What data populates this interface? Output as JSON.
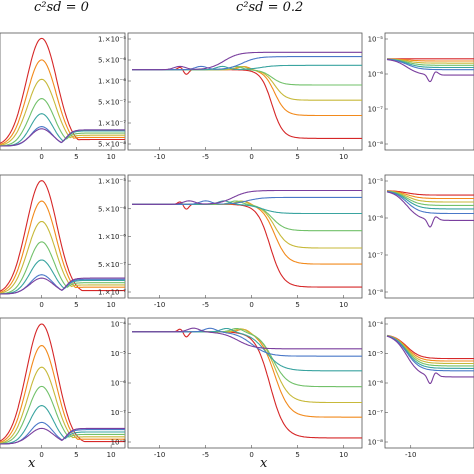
{
  "headers": {
    "left": "c²sd = 0",
    "center": "c²sd = 0.2"
  },
  "xlabel": "x",
  "series_colors": [
    "#d62728",
    "#f28a1c",
    "#c7b93a",
    "#72c16a",
    "#3aa4a0",
    "#4a78c8",
    "#7a3f9e"
  ],
  "chart_data": [
    {
      "type": "line",
      "panel": "left-row1",
      "xticks": [
        "0",
        "5",
        "10"
      ],
      "xlim": [
        -6,
        12
      ],
      "series": [
        {
          "peak": 1.0,
          "sigma": 2.2,
          "tail": 0.06
        },
        {
          "peak": 0.8,
          "sigma": 2.1,
          "tail": 0.08
        },
        {
          "peak": 0.62,
          "sigma": 2.0,
          "tail": 0.1
        },
        {
          "peak": 0.44,
          "sigma": 1.8,
          "tail": 0.12
        },
        {
          "peak": 0.3,
          "sigma": 1.6,
          "tail": 0.14
        },
        {
          "peak": 0.18,
          "sigma": 1.5,
          "tail": 0.15
        },
        {
          "peak": 0.16,
          "sigma": 1.6,
          "tail": 0.15
        }
      ]
    },
    {
      "type": "line",
      "panel": "left-row2",
      "xticks": [
        "0",
        "5",
        "10"
      ],
      "xlim": [
        -6,
        12
      ],
      "series": [
        {
          "peak": 1.0,
          "sigma": 2.2,
          "tail": 0.03
        },
        {
          "peak": 0.82,
          "sigma": 2.1,
          "tail": 0.06
        },
        {
          "peak": 0.64,
          "sigma": 2.0,
          "tail": 0.08
        },
        {
          "peak": 0.46,
          "sigma": 1.8,
          "tail": 0.1
        },
        {
          "peak": 0.3,
          "sigma": 1.7,
          "tail": 0.12
        },
        {
          "peak": 0.17,
          "sigma": 1.6,
          "tail": 0.13
        },
        {
          "peak": 0.14,
          "sigma": 1.7,
          "tail": 0.14
        }
      ]
    },
    {
      "type": "line",
      "panel": "left-row3",
      "xticks": [
        "0",
        "5",
        "10"
      ],
      "xlim": [
        -6,
        12
      ],
      "series": [
        {
          "peak": 1.0,
          "sigma": 2.2,
          "tail": 0.02
        },
        {
          "peak": 0.82,
          "sigma": 2.1,
          "tail": 0.04
        },
        {
          "peak": 0.64,
          "sigma": 2.0,
          "tail": 0.06
        },
        {
          "peak": 0.48,
          "sigma": 1.9,
          "tail": 0.08
        },
        {
          "peak": 0.32,
          "sigma": 1.7,
          "tail": 0.1
        },
        {
          "peak": 0.18,
          "sigma": 1.6,
          "tail": 0.12
        },
        {
          "peak": 0.13,
          "sigma": 1.7,
          "tail": 0.13
        }
      ]
    },
    {
      "type": "line",
      "panel": "center-row1",
      "yscale": "log",
      "xticks": [
        "-10",
        "-5",
        "0",
        "5",
        "10"
      ],
      "xlim": [
        -13,
        12
      ],
      "yticks": [
        "1.×10⁻⁵",
        "5.×10⁻⁶",
        "1.×10⁻⁶",
        "5.×10⁻⁷",
        "1.×10⁻⁷",
        "5.×10⁻⁸"
      ],
      "series": [
        {
          "left": 0.3,
          "right": 0.93,
          "x0": 2.2,
          "w": 0.6,
          "ring": 1
        },
        {
          "left": 0.3,
          "right": 0.72,
          "x0": 2.5,
          "w": 0.6
        },
        {
          "left": 0.3,
          "right": 0.58,
          "x0": 2.5,
          "w": 0.6
        },
        {
          "left": 0.3,
          "right": 0.44,
          "x0": 2.2,
          "w": 0.6
        },
        {
          "left": 0.3,
          "right": 0.26,
          "x0": 1.0,
          "w": 0.8
        },
        {
          "left": 0.3,
          "right": 0.18,
          "x0": -1.0,
          "w": 0.8
        },
        {
          "left": 0.3,
          "right": 0.14,
          "x0": -3.0,
          "w": 0.8
        }
      ]
    },
    {
      "type": "line",
      "panel": "center-row2",
      "yscale": "log",
      "xticks": [
        "-10",
        "-5",
        "0",
        "5",
        "10"
      ],
      "xlim": [
        -13,
        12
      ],
      "yticks": [
        "1.×10⁻⁵",
        "5.×10⁻⁶",
        "1.×10⁻⁶",
        "5.×10⁻⁷",
        "1.×10⁻⁷"
      ],
      "series": [
        {
          "left": 0.22,
          "right": 0.94,
          "x0": 2.0,
          "w": 0.7,
          "ring": 1
        },
        {
          "left": 0.22,
          "right": 0.74,
          "x0": 2.5,
          "w": 0.7
        },
        {
          "left": 0.22,
          "right": 0.6,
          "x0": 2.5,
          "w": 0.7
        },
        {
          "left": 0.22,
          "right": 0.45,
          "x0": 2.2,
          "w": 0.7
        },
        {
          "left": 0.22,
          "right": 0.3,
          "x0": 1.2,
          "w": 0.8
        },
        {
          "left": 0.22,
          "right": 0.16,
          "x0": -0.5,
          "w": 0.8
        },
        {
          "left": 0.22,
          "right": 0.1,
          "x0": -2.0,
          "w": 0.8
        }
      ]
    },
    {
      "type": "line",
      "panel": "center-row3",
      "yscale": "log",
      "xticks": [
        "-10",
        "-5",
        "0",
        "5",
        "10"
      ],
      "xlim": [
        -13,
        12
      ],
      "yticks": [
        "10⁻⁴",
        "10⁻⁵",
        "10⁻⁶",
        "10⁻⁷",
        "10⁻⁸"
      ],
      "series": [
        {
          "left": 0.08,
          "right": 0.95,
          "x0": 2.0,
          "w": 0.8,
          "ring": 1
        },
        {
          "left": 0.08,
          "right": 0.78,
          "x0": 2.5,
          "w": 0.8
        },
        {
          "left": 0.08,
          "right": 0.66,
          "x0": 2.5,
          "w": 0.8
        },
        {
          "left": 0.08,
          "right": 0.53,
          "x0": 2.3,
          "w": 0.8
        },
        {
          "left": 0.08,
          "right": 0.4,
          "x0": 1.5,
          "w": 0.9
        },
        {
          "left": 0.08,
          "right": 0.28,
          "x0": 0.0,
          "w": 0.9
        },
        {
          "left": 0.08,
          "right": 0.22,
          "x0": -1.5,
          "w": 0.9
        }
      ]
    },
    {
      "type": "line",
      "panel": "right-row1",
      "yscale": "log",
      "xticks": [],
      "yticks": [
        "10⁻⁵",
        "10⁻⁶",
        "10⁻⁷",
        "10⁻⁸"
      ],
      "series": [
        {
          "left": 0.2,
          "right": 0.2
        },
        {
          "left": 0.2,
          "right": 0.22
        },
        {
          "left": 0.2,
          "right": 0.24
        },
        {
          "left": 0.2,
          "right": 0.26
        },
        {
          "left": 0.2,
          "right": 0.28
        },
        {
          "left": 0.2,
          "right": 0.3
        },
        {
          "left": 0.2,
          "right": 0.35,
          "dip": 1
        }
      ]
    },
    {
      "type": "line",
      "panel": "right-row2",
      "yscale": "log",
      "xticks": [],
      "yticks": [
        "10⁻⁵",
        "10⁻⁶",
        "10⁻⁷",
        "10⁻⁸"
      ],
      "series": [
        {
          "left": 0.1,
          "right": 0.14
        },
        {
          "left": 0.1,
          "right": 0.17
        },
        {
          "left": 0.1,
          "right": 0.2
        },
        {
          "left": 0.1,
          "right": 0.23
        },
        {
          "left": 0.1,
          "right": 0.26
        },
        {
          "left": 0.1,
          "right": 0.3
        },
        {
          "left": 0.1,
          "right": 0.36,
          "dip": 1
        }
      ]
    },
    {
      "type": "line",
      "panel": "right-row3",
      "yscale": "log",
      "xticks": [
        "-10"
      ],
      "yticks": [
        "10⁻⁴",
        "10⁻⁵",
        "10⁻⁶",
        "10⁻⁷",
        "10⁻⁸"
      ],
      "series": [
        {
          "left": 0.1,
          "right": 0.3
        },
        {
          "left": 0.1,
          "right": 0.32
        },
        {
          "left": 0.1,
          "right": 0.34
        },
        {
          "left": 0.1,
          "right": 0.36
        },
        {
          "left": 0.1,
          "right": 0.38
        },
        {
          "left": 0.1,
          "right": 0.4
        },
        {
          "left": 0.1,
          "right": 0.45,
          "dip": 1
        }
      ]
    }
  ]
}
